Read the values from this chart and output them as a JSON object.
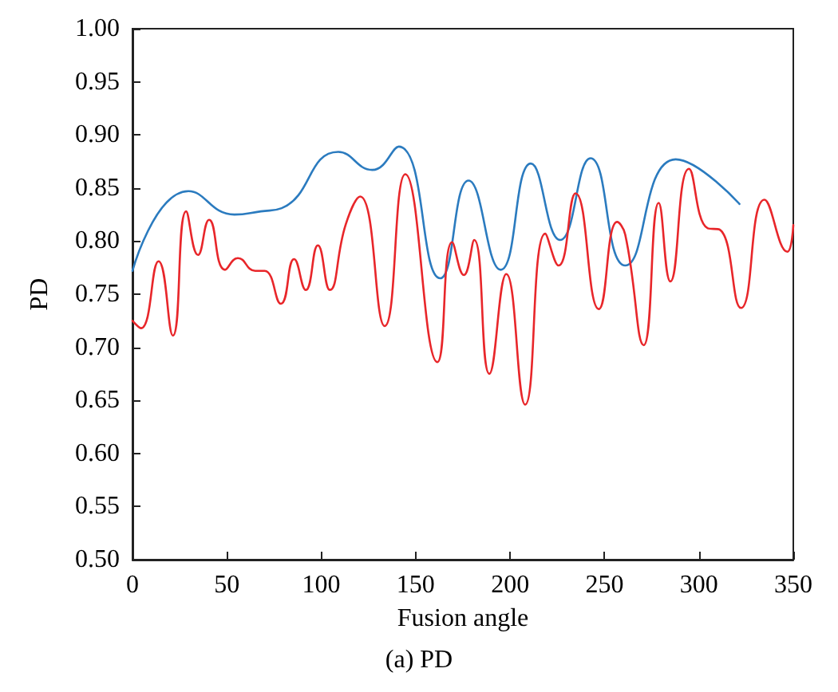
{
  "chart_data": {
    "type": "line",
    "xlabel": "Fusion angle",
    "ylabel": "PD",
    "annotations": [
      "(a) PD"
    ],
    "xlim": [
      0,
      350
    ],
    "ylim": [
      0.5,
      1.0
    ],
    "xticks": [
      0,
      50,
      100,
      150,
      200,
      250,
      300,
      350
    ],
    "yticks": [
      {
        "value": 0.5,
        "label": "0.50"
      },
      {
        "value": 0.55,
        "label": "0.55"
      },
      {
        "value": 0.6,
        "label": "0.60"
      },
      {
        "value": 0.65,
        "label": "0.65"
      },
      {
        "value": 0.7,
        "label": "0.70"
      },
      {
        "value": 0.75,
        "label": "0.75"
      },
      {
        "value": 0.8,
        "label": "0.80"
      },
      {
        "value": 0.85,
        "label": "0.85"
      },
      {
        "value": 0.9,
        "label": "0.90"
      },
      {
        "value": 0.95,
        "label": "0.95"
      },
      {
        "value": 1.0,
        "label": "1.00"
      }
    ],
    "grid": false,
    "marker": "none",
    "line_style": "solid",
    "series": [
      {
        "color": "#2b7bbf",
        "x": [
          0,
          29.6,
          54,
          68,
          79,
          109,
          127,
          141,
          163,
          178,
          195,
          211,
          226.5,
          242.6,
          261,
          287.7,
          321.5
        ],
        "values": [
          0.772,
          0.847,
          0.825,
          0.828,
          0.831,
          0.884,
          0.867,
          0.889,
          0.765,
          0.857,
          0.773,
          0.873,
          0.801,
          0.878,
          0.777,
          0.877,
          0.835
        ]
      },
      {
        "color": "#e8262a",
        "x": [
          0,
          4.5,
          13.8,
          21.4,
          28.4,
          34.7,
          40.6,
          49,
          55.8,
          65,
          70,
          78.6,
          85.6,
          91.8,
          98.2,
          104.5,
          113,
          120.6,
          133.6,
          144.5,
          161.5,
          169.3,
          175.5,
          181,
          189,
          198,
          208,
          218.6,
          225.7,
          234.7,
          247,
          256.7,
          261,
          270.8,
          278.7,
          284.9,
          294.7,
          304.7,
          310.8,
          322.3,
          334.7,
          346.8,
          350
        ],
        "values": [
          0.725,
          0.718,
          0.781,
          0.711,
          0.828,
          0.787,
          0.82,
          0.773,
          0.784,
          0.772,
          0.772,
          0.741,
          0.783,
          0.754,
          0.796,
          0.754,
          0.816,
          0.842,
          0.72,
          0.863,
          0.686,
          0.799,
          0.768,
          0.801,
          0.675,
          0.769,
          0.646,
          0.807,
          0.777,
          0.845,
          0.736,
          0.818,
          0.806,
          0.702,
          0.836,
          0.762,
          0.868,
          0.812,
          0.811,
          0.737,
          0.839,
          0.79,
          0.815
        ]
      }
    ]
  }
}
